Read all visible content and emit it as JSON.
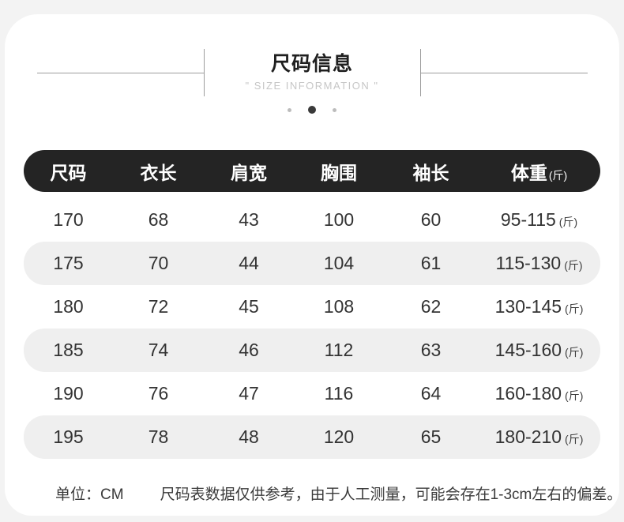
{
  "header": {
    "title": "尺码信息",
    "subtitle": "\" SIZE INFORMATION \"",
    "pagination": {
      "dot_count": 3,
      "active_dot_index": 1
    }
  },
  "table": {
    "columns": [
      {
        "label": "尺码"
      },
      {
        "label": "衣长"
      },
      {
        "label": "肩宽"
      },
      {
        "label": "胸围"
      },
      {
        "label": "袖长"
      },
      {
        "label": "体重",
        "unit": "(斤)"
      }
    ],
    "rows": [
      {
        "size": "170",
        "length": "68",
        "shoulder": "43",
        "chest": "100",
        "sleeve": "60",
        "weight": "95-115",
        "weight_unit": "(斤)"
      },
      {
        "size": "175",
        "length": "70",
        "shoulder": "44",
        "chest": "104",
        "sleeve": "61",
        "weight": "115-130",
        "weight_unit": "(斤)"
      },
      {
        "size": "180",
        "length": "72",
        "shoulder": "45",
        "chest": "108",
        "sleeve": "62",
        "weight": "130-145",
        "weight_unit": "(斤)"
      },
      {
        "size": "185",
        "length": "74",
        "shoulder": "46",
        "chest": "112",
        "sleeve": "63",
        "weight": "145-160",
        "weight_unit": "(斤)"
      },
      {
        "size": "190",
        "length": "76",
        "shoulder": "47",
        "chest": "116",
        "sleeve": "64",
        "weight": "160-180",
        "weight_unit": "(斤)"
      },
      {
        "size": "195",
        "length": "78",
        "shoulder": "48",
        "chest": "120",
        "sleeve": "65",
        "weight": "180-210",
        "weight_unit": "(斤)"
      }
    ]
  },
  "footer": {
    "unit_label": "单位：CM",
    "note": "尺码表数据仅供参考，由于人工测量，可能会存在1-3cm左右的偏差。"
  },
  "colors": {
    "page_bg": "#f3f3f3",
    "card_bg": "#ffffff",
    "table_header_bg": "#242424",
    "table_header_text": "#ffffff",
    "row_alt_bg": "#efefef",
    "body_text": "#333333",
    "subtitle_text": "#c6c6c6",
    "divider_line": "#9c9c9c",
    "dot_inactive": "#bcbcbc",
    "dot_active": "#3a3a3a"
  },
  "chart_data": {
    "type": "table",
    "title": "尺码信息 (SIZE INFORMATION)",
    "columns": [
      "尺码",
      "衣长",
      "肩宽",
      "胸围",
      "袖长",
      "体重(斤)"
    ],
    "rows": [
      [
        "170",
        "68",
        "43",
        "100",
        "60",
        "95-115"
      ],
      [
        "175",
        "70",
        "44",
        "104",
        "61",
        "115-130"
      ],
      [
        "180",
        "72",
        "45",
        "108",
        "62",
        "130-145"
      ],
      [
        "185",
        "74",
        "46",
        "112",
        "63",
        "145-160"
      ],
      [
        "190",
        "76",
        "47",
        "116",
        "64",
        "160-180"
      ],
      [
        "195",
        "78",
        "48",
        "120",
        "65",
        "180-210"
      ]
    ],
    "units": "CM",
    "weight_unit": "斤"
  }
}
